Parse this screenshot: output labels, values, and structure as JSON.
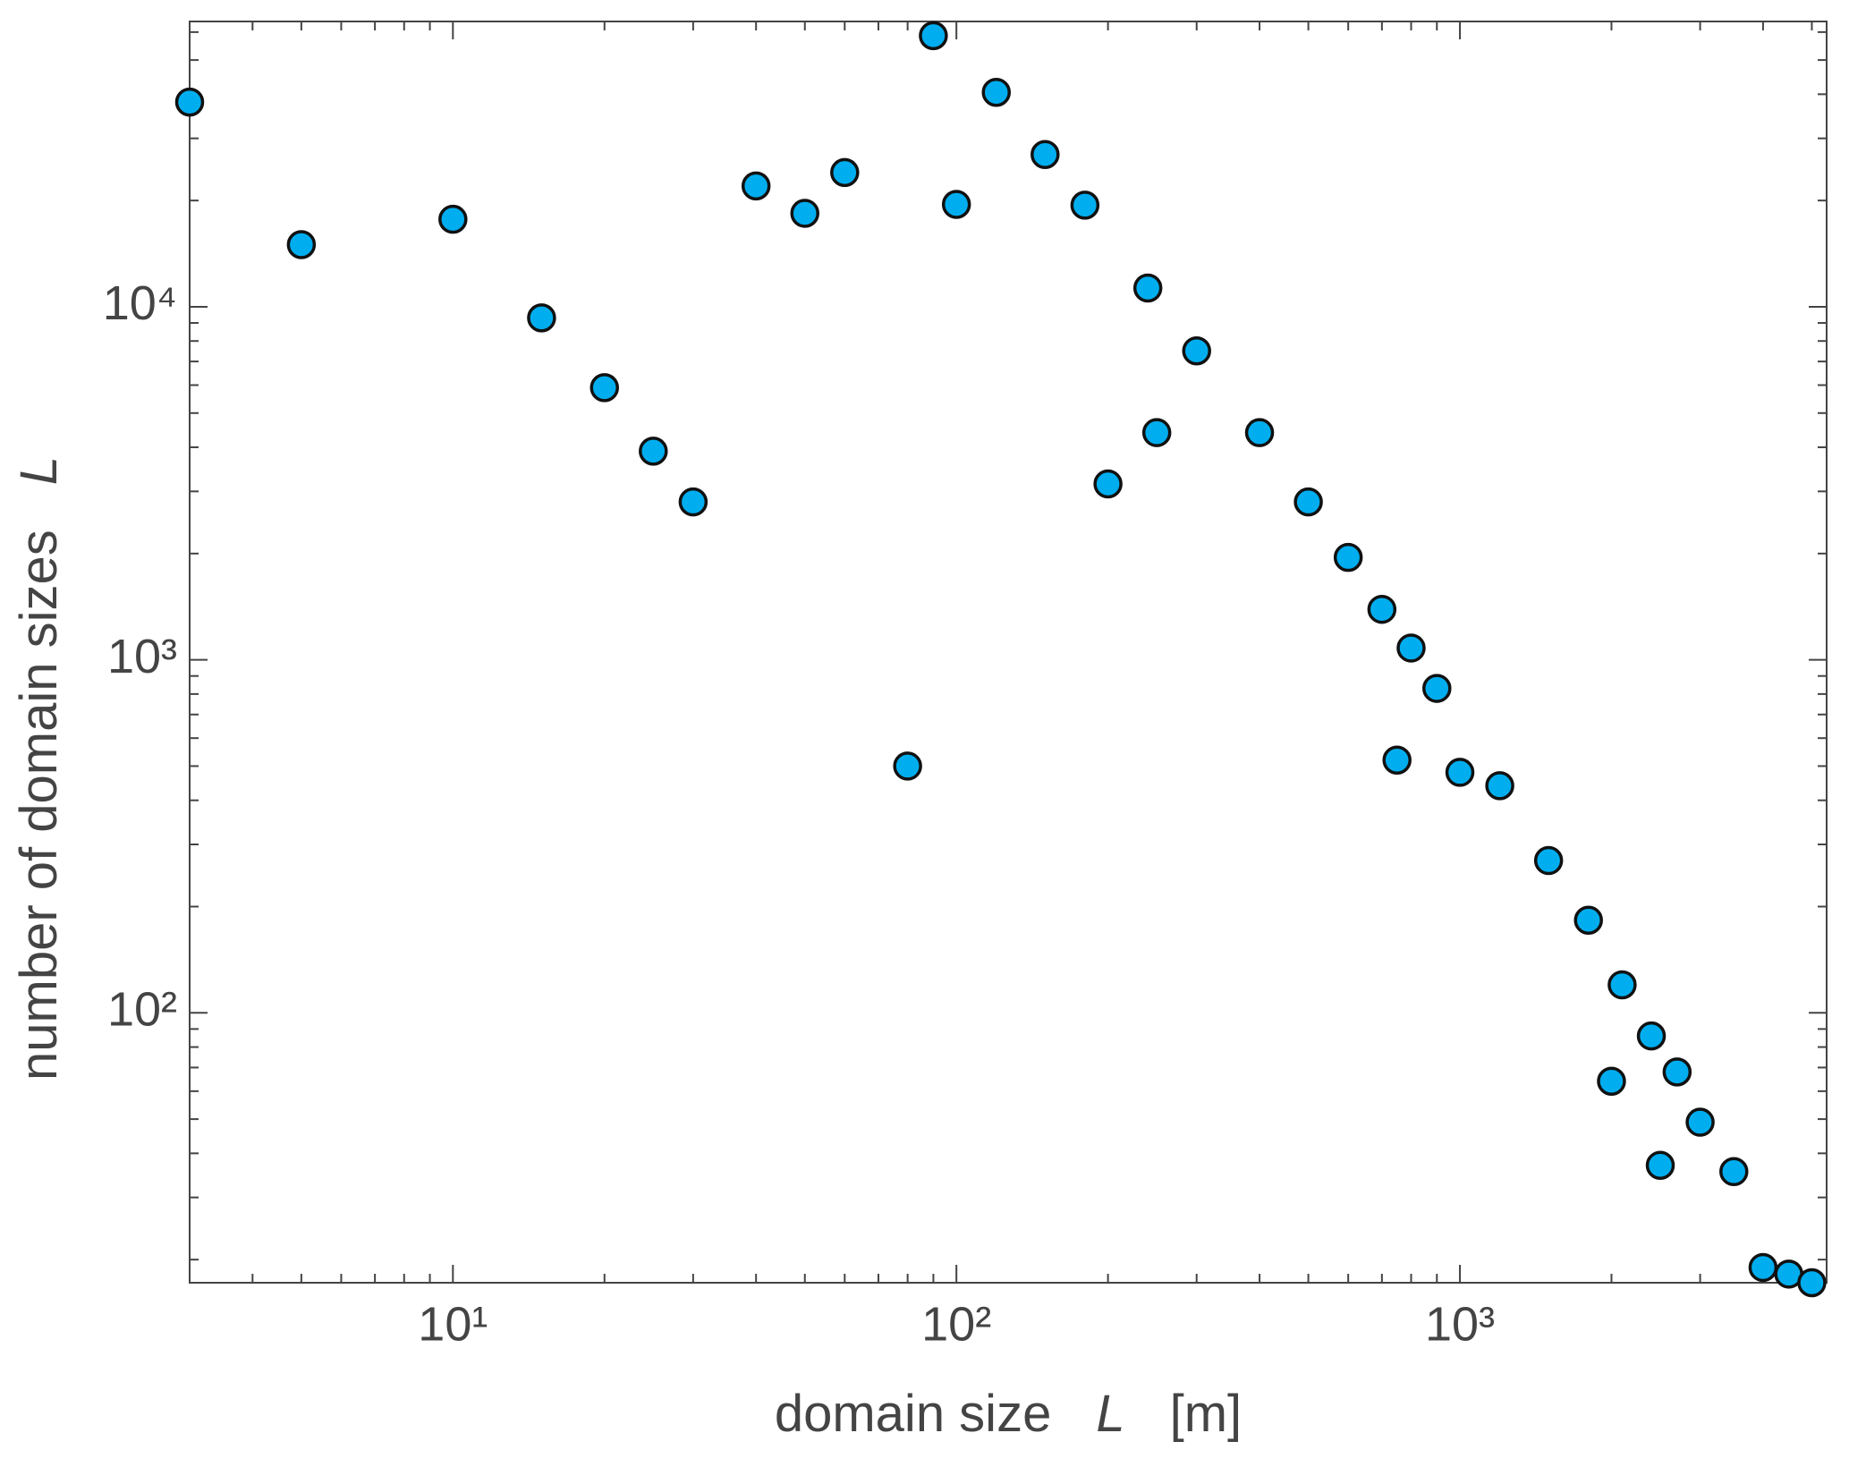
{
  "chart_data": {
    "type": "scatter",
    "xlabel": [
      "domain size",
      "L",
      "[m]"
    ],
    "ylabel": [
      "number of domain sizes",
      "L"
    ],
    "xscale": "log",
    "yscale": "log",
    "xlim": [
      3,
      5350
    ],
    "ylim": [
      17.2,
      64300
    ],
    "xticks": [
      {
        "value": 10,
        "label": "10¹"
      },
      {
        "value": 100,
        "label": "10²"
      },
      {
        "value": 1000,
        "label": "10³"
      }
    ],
    "yticks": [
      {
        "value": 100,
        "label": "10²"
      },
      {
        "value": 1000,
        "label": "10³"
      },
      {
        "value": 10000,
        "label": "10⁴"
      }
    ],
    "xminorticks": [
      3,
      4,
      5,
      6,
      7,
      8,
      9,
      20,
      30,
      40,
      50,
      60,
      70,
      80,
      90,
      200,
      300,
      400,
      500,
      600,
      700,
      800,
      900,
      2000,
      3000,
      4000,
      5000
    ],
    "yminorticks": [
      20,
      30,
      40,
      50,
      60,
      70,
      80,
      90,
      200,
      300,
      400,
      500,
      600,
      700,
      800,
      900,
      2000,
      3000,
      4000,
      5000,
      6000,
      7000,
      8000,
      9000,
      20000,
      30000,
      40000,
      50000,
      60000
    ],
    "color": "#00aeef",
    "x": [
      3,
      5,
      10,
      15,
      20,
      25,
      30,
      40,
      50,
      60,
      80,
      90,
      100,
      120,
      150,
      180,
      200,
      240,
      250,
      300,
      400,
      500,
      600,
      700,
      750,
      800,
      900,
      1000,
      1200,
      1500,
      1800,
      2000,
      2100,
      2400,
      2500,
      2700,
      3000,
      3500,
      4000,
      4500,
      5000
    ],
    "values": [
      38000,
      15000,
      17700,
      9300,
      5900,
      3900,
      2800,
      22000,
      18400,
      24000,
      500,
      58600,
      19500,
      40500,
      27000,
      19400,
      3150,
      11300,
      4400,
      7500,
      4400,
      2800,
      1950,
      1390,
      520,
      1080,
      830,
      480,
      440,
      270,
      183,
      64,
      120,
      86,
      37,
      68,
      49,
      35.5,
      19,
      18.2,
      17.2
    ]
  }
}
